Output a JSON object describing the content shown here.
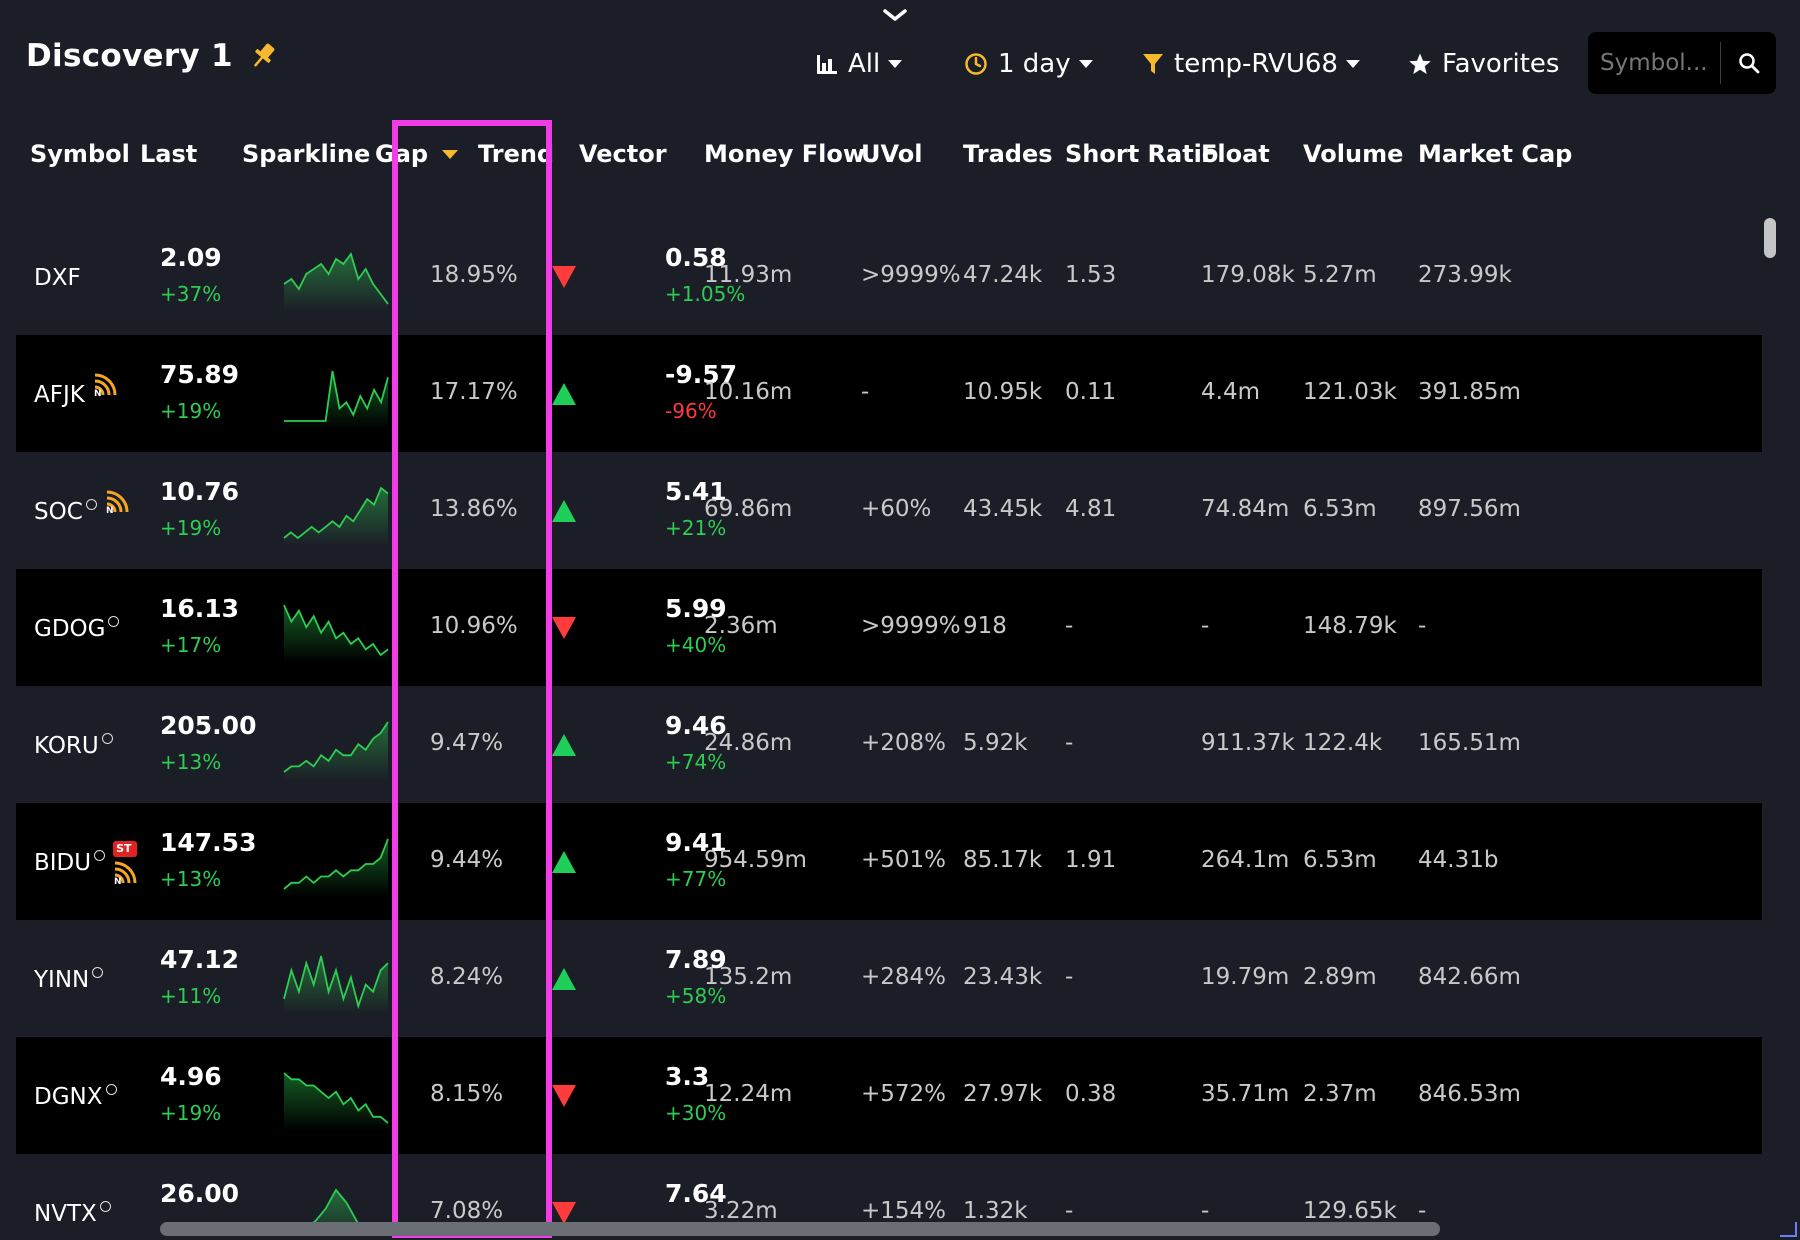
{
  "header": {
    "title": "Discovery 1",
    "tools": {
      "all_label": "All",
      "timeframe_label": "1 day",
      "filter_label": "temp-RVU68",
      "favorites_label": "Favorites"
    },
    "search": {
      "placeholder": "Symbol..."
    }
  },
  "colors": {
    "background": "#1b1e26",
    "row_alt": "#000000",
    "positive": "#2ecc52",
    "negative": "#ff3b3b",
    "accent": "#f5b82e",
    "highlight": "#f23ce8"
  },
  "columns": [
    "Symbol",
    "Last",
    "Sparkline",
    "Gap",
    "Trend",
    "Vector",
    "Money Flow",
    "UVol",
    "Trades",
    "Short Ratio",
    "Float",
    "Volume",
    "Market Cap"
  ],
  "sort": {
    "column": "Gap",
    "direction": "desc"
  },
  "rows": [
    {
      "symbol": "DXF",
      "circle": false,
      "news": false,
      "st": false,
      "last": "2.09",
      "last_change": "+37%",
      "last_dir": "pos",
      "spark": [
        5,
        6,
        4,
        7,
        8,
        9,
        7,
        10,
        9,
        11,
        6,
        8,
        5,
        3,
        1
      ],
      "gap": "18.95%",
      "trend": "down",
      "vector": "0.58",
      "vector_change": "+1.05%",
      "vector_dir": "pos",
      "money_flow": "11.93m",
      "uvol": ">9999%",
      "trades": "47.24k",
      "short_ratio": "1.53",
      "float": "179.08k",
      "volume": "5.27m",
      "market_cap": "273.99k"
    },
    {
      "symbol": "AFJK",
      "circle": false,
      "news": true,
      "st": false,
      "last": "75.89",
      "last_change": "+19%",
      "last_dir": "pos",
      "spark": [
        1,
        1,
        1,
        1,
        1,
        1,
        1,
        9,
        3,
        4,
        2,
        5,
        3,
        6,
        4,
        8
      ],
      "gap": "17.17%",
      "trend": "up",
      "vector": "-9.57",
      "vector_change": "-96%",
      "vector_dir": "neg",
      "money_flow": "10.16m",
      "uvol": "-",
      "trades": "10.95k",
      "short_ratio": "0.11",
      "float": "4.4m",
      "volume": "121.03k",
      "market_cap": "391.85m"
    },
    {
      "symbol": "SOC",
      "circle": true,
      "news": true,
      "st": false,
      "last": "10.76",
      "last_change": "+19%",
      "last_dir": "pos",
      "spark": [
        1,
        2,
        1,
        2,
        3,
        2,
        3,
        4,
        3,
        5,
        4,
        6,
        8,
        7,
        10,
        9
      ],
      "gap": "13.86%",
      "trend": "up",
      "vector": "5.41",
      "vector_change": "+21%",
      "vector_dir": "pos",
      "money_flow": "69.86m",
      "uvol": "+60%",
      "trades": "43.45k",
      "short_ratio": "4.81",
      "float": "74.84m",
      "volume": "6.53m",
      "market_cap": "897.56m"
    },
    {
      "symbol": "GDOG",
      "circle": true,
      "news": false,
      "st": false,
      "last": "16.13",
      "last_change": "+17%",
      "last_dir": "pos",
      "spark": [
        10,
        7,
        9,
        6,
        8,
        5,
        7,
        4,
        5,
        3,
        4,
        2,
        3,
        1,
        2
      ],
      "gap": "10.96%",
      "trend": "down",
      "vector": "5.99",
      "vector_change": "+40%",
      "vector_dir": "pos",
      "money_flow": "2.36m",
      "uvol": ">9999%",
      "trades": "918",
      "short_ratio": "-",
      "float": "-",
      "volume": "148.79k",
      "market_cap": "-"
    },
    {
      "symbol": "KORU",
      "circle": true,
      "news": false,
      "st": false,
      "last": "205.00",
      "last_change": "+13%",
      "last_dir": "pos",
      "spark": [
        1,
        2,
        2,
        3,
        2,
        4,
        3,
        5,
        4,
        4,
        6,
        5,
        7,
        8,
        10
      ],
      "gap": "9.47%",
      "trend": "up",
      "vector": "9.46",
      "vector_change": "+74%",
      "vector_dir": "pos",
      "money_flow": "24.86m",
      "uvol": "+208%",
      "trades": "5.92k",
      "short_ratio": "-",
      "float": "911.37k",
      "volume": "122.4k",
      "market_cap": "165.51m"
    },
    {
      "symbol": "BIDU",
      "circle": true,
      "news": true,
      "st": true,
      "last": "147.53",
      "last_change": "+13%",
      "last_dir": "pos",
      "spark": [
        1,
        2,
        2,
        3,
        2,
        3,
        3,
        4,
        3,
        4,
        4,
        5,
        5,
        6,
        9
      ],
      "gap": "9.44%",
      "trend": "up",
      "vector": "9.41",
      "vector_change": "+77%",
      "vector_dir": "pos",
      "money_flow": "954.59m",
      "uvol": "+501%",
      "trades": "85.17k",
      "short_ratio": "1.91",
      "float": "264.1m",
      "volume": "6.53m",
      "market_cap": "44.31b"
    },
    {
      "symbol": "YINN",
      "circle": true,
      "news": false,
      "st": false,
      "last": "47.12",
      "last_change": "+11%",
      "last_dir": "pos",
      "spark": [
        2,
        6,
        3,
        7,
        4,
        8,
        3,
        6,
        2,
        5,
        1,
        4,
        3,
        6,
        7
      ],
      "gap": "8.24%",
      "trend": "up",
      "vector": "7.89",
      "vector_change": "+58%",
      "vector_dir": "pos",
      "money_flow": "135.2m",
      "uvol": "+284%",
      "trades": "23.43k",
      "short_ratio": "-",
      "float": "19.79m",
      "volume": "2.89m",
      "market_cap": "842.66m"
    },
    {
      "symbol": "DGNX",
      "circle": true,
      "news": false,
      "st": false,
      "last": "4.96",
      "last_change": "+19%",
      "last_dir": "pos",
      "spark": [
        9,
        8,
        8,
        7,
        7,
        6,
        5,
        6,
        4,
        5,
        3,
        4,
        2,
        2,
        1
      ],
      "gap": "8.15%",
      "trend": "down",
      "vector": "3.3",
      "vector_change": "+30%",
      "vector_dir": "pos",
      "money_flow": "12.24m",
      "uvol": "+572%",
      "trades": "27.97k",
      "short_ratio": "0.38",
      "float": "35.71m",
      "volume": "2.37m",
      "market_cap": "846.53m"
    },
    {
      "symbol": "NVTX",
      "circle": true,
      "news": false,
      "st": false,
      "last": "26.00",
      "last_change": "",
      "last_dir": "pos",
      "spark": [
        1,
        2,
        3,
        4,
        6,
        9,
        7,
        4,
        2,
        1,
        1
      ],
      "gap": "7.08%",
      "trend": "down",
      "vector": "7.64",
      "vector_change": "",
      "vector_dir": "pos",
      "money_flow": "3.22m",
      "uvol": "+154%",
      "trades": "1.32k",
      "short_ratio": "-",
      "float": "-",
      "volume": "129.65k",
      "market_cap": "-"
    }
  ]
}
